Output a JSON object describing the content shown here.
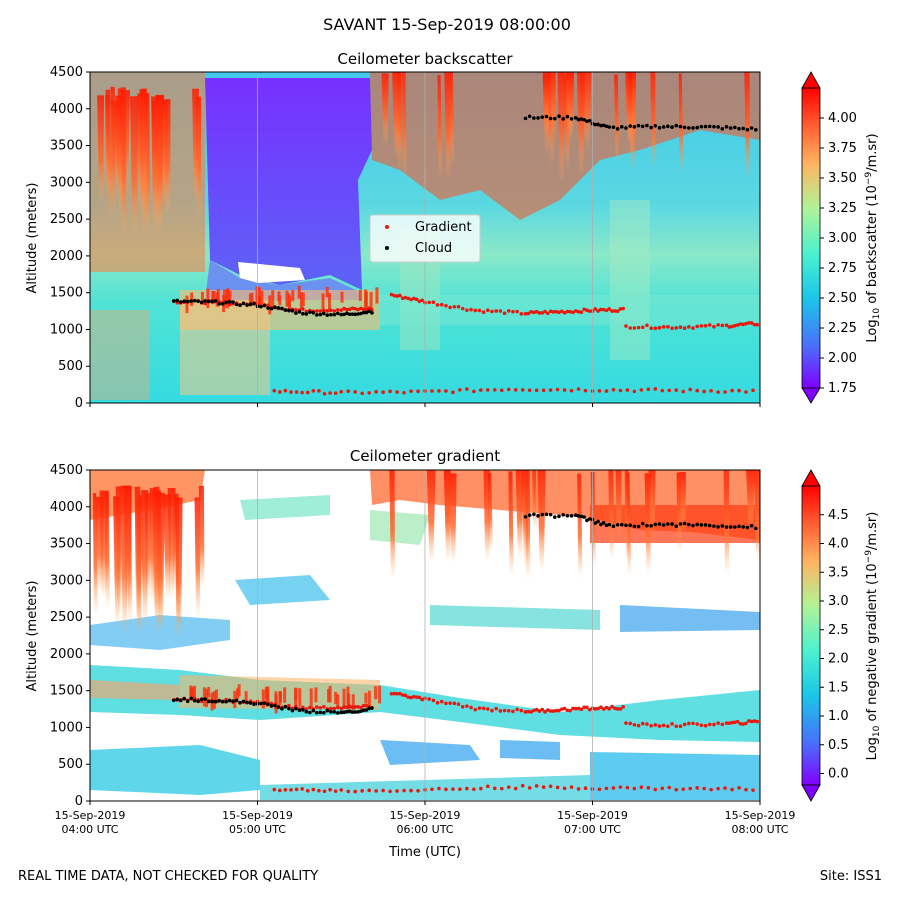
{
  "figure": {
    "title": "SAVANT 15-Sep-2019 08:00:00",
    "footer_left": "REAL TIME DATA, NOT CHECKED FOR QUALITY",
    "footer_right": "Site: ISS1",
    "xlabel": "Time (UTC)",
    "legend": {
      "gradient": "Gradient",
      "cloud": "Cloud"
    },
    "colors": {
      "gradient_marker": "#e8190e",
      "cloud_marker": "#000000"
    }
  },
  "chart_data": [
    {
      "type": "heatmap",
      "title": "Ceilometer backscatter",
      "xlabel": "",
      "ylabel": "Altitude (meters)",
      "x_range": [
        "15-Sep-2019 04:00 UTC",
        "15-Sep-2019 08:00 UTC"
      ],
      "ylim": [
        0,
        4500
      ],
      "yticks": [
        0,
        500,
        1000,
        1500,
        2000,
        2500,
        3000,
        3500,
        4000,
        4500
      ],
      "xticks": [
        "04:00 UTC",
        "05:00 UTC",
        "06:00 UTC",
        "07:00 UTC",
        "08:00 UTC"
      ],
      "colorbar": {
        "label": "Log10 of backscatter (10^-9/m.sr)",
        "label_parts": {
          "pre": "Log",
          "sub": "10",
          "mid": " of backscatter (10",
          "sup": "−9",
          "post": "/m.sr)"
        },
        "min": 1.75,
        "max": 4.25,
        "ticks": [
          "1.75",
          "2.00",
          "2.25",
          "2.50",
          "2.75",
          "3.00",
          "3.25",
          "3.50",
          "3.75",
          "4.00"
        ]
      },
      "legend": {
        "entries": [
          "Gradient",
          "Cloud"
        ],
        "placement": "center"
      },
      "gradient_layers": [
        {
          "name": "boundary-layer-top",
          "points": [
            [
              4.5,
              1380
            ],
            [
              4.75,
              1370
            ],
            [
              5.0,
              1340
            ],
            [
              5.25,
              1260
            ],
            [
              5.5,
              1270
            ],
            [
              5.7,
              1280
            ]
          ]
        },
        {
          "name": "residual-layer",
          "points": [
            [
              5.8,
              1470
            ],
            [
              6.0,
              1380
            ],
            [
              6.3,
              1260
            ],
            [
              6.6,
              1220
            ],
            [
              6.8,
              1240
            ],
            [
              7.0,
              1260
            ],
            [
              7.2,
              1270
            ]
          ]
        },
        {
          "name": "upper-layer",
          "points": [
            [
              7.2,
              1040
            ],
            [
              7.5,
              1030
            ],
            [
              7.8,
              1050
            ],
            [
              8.0,
              1080
            ]
          ]
        },
        {
          "name": "surface-layer",
          "points": [
            [
              5.1,
              160
            ],
            [
              5.5,
              140
            ],
            [
              6.0,
              150
            ],
            [
              6.5,
              190
            ],
            [
              7.0,
              180
            ],
            [
              7.5,
              170
            ],
            [
              8.0,
              160
            ]
          ]
        }
      ],
      "cloud_layers": [
        {
          "name": "low-cloud",
          "points": [
            [
              4.5,
              1380
            ],
            [
              4.75,
              1370
            ],
            [
              5.0,
              1330
            ],
            [
              5.25,
              1230
            ],
            [
              5.5,
              1200
            ],
            [
              5.7,
              1250
            ]
          ]
        },
        {
          "name": "high-cloud",
          "points": [
            [
              6.6,
              3880
            ],
            [
              6.9,
              3880
            ],
            [
              7.1,
              3740
            ],
            [
              7.4,
              3760
            ],
            [
              7.7,
              3750
            ],
            [
              8.0,
              3720
            ]
          ]
        }
      ]
    },
    {
      "type": "heatmap",
      "title": "Ceilometer gradient",
      "xlabel": "Time (UTC)",
      "ylabel": "Altitude (meters)",
      "x_range": [
        "15-Sep-2019 04:00 UTC",
        "15-Sep-2019 08:00 UTC"
      ],
      "ylim": [
        0,
        4500
      ],
      "yticks": [
        0,
        500,
        1000,
        1500,
        2000,
        2500,
        3000,
        3500,
        4000,
        4500
      ],
      "xticks": [
        "04:00 UTC",
        "05:00 UTC",
        "06:00 UTC",
        "07:00 UTC",
        "08:00 UTC"
      ],
      "colorbar": {
        "label": "Log10 of negative gradient (10^-9/m.sr)",
        "label_parts": {
          "pre": "Log",
          "sub": "10",
          "mid": " of negative gradient (10",
          "sup": "−9",
          "post": "/m.sr)"
        },
        "min": -0.2,
        "max": 5.0,
        "ticks": [
          "0.0",
          "0.5",
          "1.0",
          "1.5",
          "2.0",
          "2.5",
          "3.0",
          "3.5",
          "4.0",
          "4.5"
        ]
      },
      "gradient_layers": [
        {
          "name": "boundary-layer-top",
          "points": [
            [
              4.5,
              1380
            ],
            [
              4.75,
              1370
            ],
            [
              5.0,
              1340
            ],
            [
              5.25,
              1260
            ],
            [
              5.5,
              1270
            ],
            [
              5.7,
              1280
            ]
          ]
        },
        {
          "name": "residual-layer",
          "points": [
            [
              5.8,
              1470
            ],
            [
              6.0,
              1380
            ],
            [
              6.3,
              1260
            ],
            [
              6.6,
              1220
            ],
            [
              6.8,
              1240
            ],
            [
              7.0,
              1260
            ],
            [
              7.2,
              1270
            ]
          ]
        },
        {
          "name": "upper-layer",
          "points": [
            [
              7.2,
              1040
            ],
            [
              7.5,
              1030
            ],
            [
              7.8,
              1050
            ],
            [
              8.0,
              1080
            ]
          ]
        },
        {
          "name": "surface-layer",
          "points": [
            [
              5.1,
              160
            ],
            [
              5.5,
              140
            ],
            [
              6.0,
              150
            ],
            [
              6.5,
              190
            ],
            [
              7.0,
              180
            ],
            [
              7.5,
              170
            ],
            [
              8.0,
              160
            ]
          ]
        }
      ],
      "cloud_layers": [
        {
          "name": "low-cloud",
          "points": [
            [
              4.5,
              1380
            ],
            [
              4.75,
              1370
            ],
            [
              5.0,
              1330
            ],
            [
              5.25,
              1230
            ],
            [
              5.5,
              1200
            ],
            [
              5.7,
              1250
            ]
          ]
        },
        {
          "name": "high-cloud",
          "points": [
            [
              6.6,
              3880
            ],
            [
              6.9,
              3880
            ],
            [
              7.1,
              3740
            ],
            [
              7.4,
              3760
            ],
            [
              7.7,
              3750
            ],
            [
              8.0,
              3720
            ]
          ]
        }
      ]
    }
  ]
}
